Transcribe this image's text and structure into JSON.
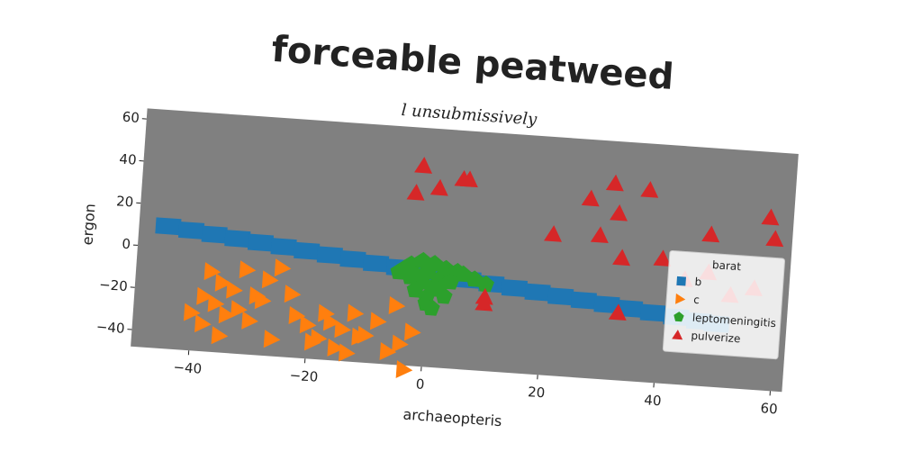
{
  "chart_data": {
    "type": "scatter",
    "title": "forceable peatweed",
    "subtitle": "l unsubmissively",
    "xlabel": "archaeopteris",
    "ylabel": "ergon",
    "xlim": [
      -50,
      62
    ],
    "ylim": [
      -48,
      65
    ],
    "xticks": [
      {
        "value": -40,
        "label": "−40"
      },
      {
        "value": -20,
        "label": "−20"
      },
      0,
      20,
      40,
      60
    ],
    "yticks": [
      {
        "value": -40,
        "label": "−40"
      },
      {
        "value": -20,
        "label": "−20"
      },
      0,
      20,
      40,
      60
    ],
    "legend": "center right",
    "legend_title": "barat",
    "series": [
      {
        "name": "b",
        "color": "#1f77b4",
        "marker": "square",
        "x": [
          -45,
          -41,
          -37,
          -33,
          -29,
          -25,
          -21,
          -17,
          -13,
          -9,
          -5,
          -1,
          3,
          7,
          11,
          15,
          19,
          23,
          27,
          31,
          35,
          39,
          43,
          47,
          50
        ],
        "values": [
          10,
          8.8,
          7.6,
          6.4,
          5.3,
          4.1,
          2.9,
          1.7,
          0.5,
          -0.7,
          -1.9,
          -3,
          -4.2,
          -5.4,
          -6.6,
          -7.8,
          -9,
          -10.2,
          -11.3,
          -12.5,
          -13.7,
          -14.9,
          -16.1,
          -17.3,
          -18
        ]
      },
      {
        "name": "c",
        "color": "#ff7f0e",
        "marker": "triangle-right",
        "x": [
          -37,
          -35,
          -33,
          -31,
          -29,
          -27,
          -25,
          -38,
          -36,
          -34,
          -32,
          -30,
          -28,
          -26,
          -40,
          -38,
          -35,
          -22,
          -20,
          -18,
          -16,
          -14,
          -12,
          -10,
          -8,
          -6,
          -4,
          -2,
          -3,
          -15,
          -13,
          -17,
          -19,
          -11,
          -5,
          -23
        ],
        "values": [
          -10,
          -15,
          -18,
          -8,
          -20,
          -12,
          -6,
          -22,
          -25,
          -30,
          -27,
          -32,
          -22,
          -40,
          -30,
          -35,
          -40,
          -28,
          -32,
          -38,
          -30,
          -33,
          -25,
          -35,
          -28,
          -42,
          -38,
          -32,
          -50,
          -42,
          -44,
          -26,
          -40,
          -36,
          -20,
          -18
        ]
      },
      {
        "name": "leptomeningitis",
        "color": "#2ca02c",
        "marker": "pentagon",
        "x": [
          -4,
          -3,
          -2,
          -1,
          0,
          1,
          2,
          3,
          4,
          5,
          -2,
          0,
          2,
          4,
          -1,
          1,
          3,
          -3,
          0,
          2,
          6,
          8,
          10,
          -5,
          1
        ],
        "values": [
          -2,
          0,
          -5,
          -8,
          -3,
          -10,
          -6,
          -1,
          -4,
          -2,
          -12,
          -15,
          -9,
          -7,
          2,
          1,
          -14,
          -6,
          -18,
          -11,
          -3,
          -5,
          -7,
          -4,
          -20
        ]
      },
      {
        "name": "pulverize",
        "color": "#d62728",
        "marker": "triangle-up",
        "x": [
          -2,
          -3,
          1,
          5,
          6,
          27,
          31,
          32,
          37,
          29,
          21,
          33,
          40,
          48,
          58,
          59,
          10,
          10,
          33,
          48,
          44,
          56,
          52
        ],
        "values": [
          47,
          34,
          37,
          42,
          42,
          37,
          45,
          31,
          43,
          20,
          19,
          10,
          11,
          24,
          34,
          24,
          -13,
          -16,
          -16,
          6,
          2,
          0,
          -4
        ]
      }
    ]
  }
}
